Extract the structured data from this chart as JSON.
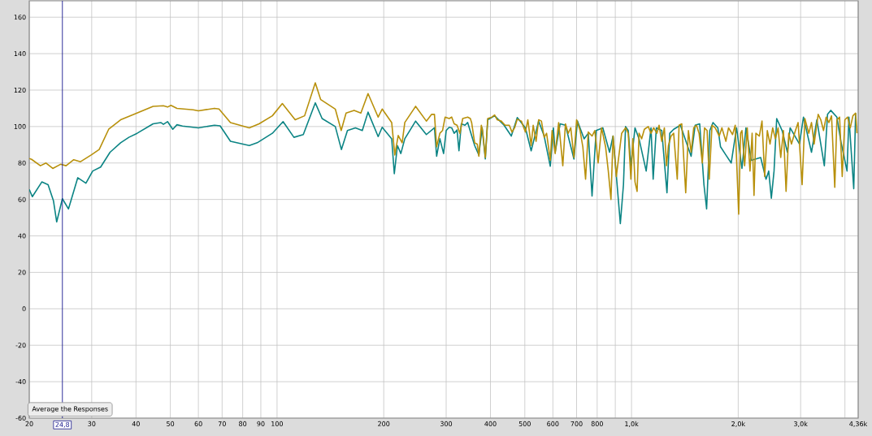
{
  "chart_data": {
    "type": "line",
    "log": "x",
    "grid": true,
    "xlim": [
      20,
      4360
    ],
    "ylim": [
      -60,
      169
    ],
    "xticks": [
      20,
      30,
      40,
      50,
      60,
      70,
      80,
      90,
      100,
      200,
      300,
      400,
      500,
      600,
      700,
      800,
      {
        "value": 900,
        "label": null
      },
      {
        "value": 1000,
        "label": "1,0k"
      },
      {
        "value": 2000,
        "label": "2,0k"
      },
      {
        "value": 3000,
        "label": "3,0k"
      },
      {
        "value": 4000,
        "label": null
      },
      {
        "value": 4360,
        "label": "4,36k"
      }
    ],
    "yticks": [
      -60,
      -40,
      -20,
      0,
      20,
      40,
      60,
      80,
      100,
      120,
      140,
      160
    ],
    "series": [
      {
        "color": "#0b8484",
        "x": [
          20,
          20.4,
          21.7,
          22.6,
          23.4,
          23.9,
          24.8,
          25.8,
          27.4,
          28.9,
          30.2,
          31.8,
          33.8,
          36.2,
          38.2,
          40.3,
          44.7,
          47,
          47.8,
          49.1,
          50.8,
          52.2,
          54.1,
          60,
          66.6,
          69.1,
          73.9,
          83.5,
          87.9,
          97,
          104,
          111.6,
          118.6,
          128.2,
          134,
          146,
          151.9,
          158,
          166.4,
          174,
          180.6,
          192.9,
          198,
          210.6,
          214.2,
          218.6,
          223.5,
          229.3,
          246,
          263.8,
          278,
          282,
          288,
          295,
          300,
          306,
          311,
          316,
          322,
          326,
          331,
          339,
          345,
          361,
          371,
          379,
          387,
          393,
          411,
          437,
          458,
          476,
          502,
          521,
          547,
          567,
          590,
          602,
          609,
          629,
          651,
          688,
          704,
          735,
          755,
          774,
          795,
          830,
          867,
          887,
          930,
          949,
          962,
          979,
          996,
          1023,
          1050,
          1100,
          1135,
          1151,
          1175,
          1217,
          1259,
          1282,
          1315,
          1374,
          1473,
          1512,
          1557,
          1601,
          1629,
          1663,
          1698,
          1752,
          1783,
          1846,
          1911,
          1979,
          2049,
          2103,
          2177,
          2314,
          2396,
          2438,
          2480,
          2524,
          2568,
          2660,
          2753,
          2802,
          2977,
          3056,
          3219,
          3333,
          3499,
          3573,
          3648,
          3797,
          3896,
          4055,
          4105,
          4236,
          4287
        ],
        "values": [
          65.5,
          61.5,
          69.6,
          68.1,
          59.3,
          47.7,
          60.4,
          54.8,
          71.9,
          68.9,
          75.6,
          77.8,
          85.9,
          91.1,
          94.1,
          96.3,
          101.5,
          102.2,
          101.2,
          102.7,
          98.5,
          101,
          100.3,
          99.3,
          100.7,
          100.4,
          91.9,
          89.6,
          91.1,
          96.3,
          102.7,
          94.1,
          95.6,
          113,
          104.4,
          100,
          87.4,
          97.8,
          99.3,
          97.8,
          107.9,
          94.5,
          99.6,
          93.3,
          74.1,
          89.6,
          85.2,
          93.3,
          103,
          95.6,
          99.3,
          83.7,
          93.3,
          85.2,
          97.8,
          99.6,
          99.3,
          96.3,
          98.1,
          86.7,
          101.5,
          100.7,
          102.2,
          89.6,
          84.4,
          99.3,
          82.2,
          103.7,
          105.9,
          100.7,
          94.8,
          104.9,
          99.3,
          86.7,
          103,
          94.8,
          78.2,
          99.3,
          85.9,
          101.5,
          100.7,
          82.2,
          103,
          93.3,
          96.3,
          61.9,
          97.8,
          99.3,
          85.9,
          94.8,
          46.7,
          68.1,
          100,
          97.8,
          78.5,
          99.3,
          93.3,
          75.6,
          99.3,
          71.1,
          99.3,
          97.8,
          63.7,
          96.3,
          98.5,
          100.7,
          83.7,
          100.7,
          101.5,
          68.1,
          54.8,
          97.8,
          102.2,
          99.3,
          88.9,
          84.4,
          80,
          99.3,
          77,
          99.3,
          81.5,
          83,
          71.1,
          75.6,
          60.7,
          75.6,
          104.4,
          97.8,
          85.9,
          99.3,
          90.4,
          105.2,
          85.9,
          103.7,
          78.5,
          106.7,
          108.9,
          105.2,
          91.9,
          75.6,
          105.2,
          65.9,
          107.4
        ]
      },
      {
        "color": "#b8900b",
        "x": [
          20,
          20.3,
          21.5,
          22.3,
          23.3,
          24.5,
          25.4,
          26.7,
          27.9,
          29.9,
          31.5,
          33.5,
          36.2,
          39.5,
          44.7,
          47.8,
          49.1,
          50.2,
          52.2,
          58,
          60,
          66.6,
          68.6,
          73.9,
          83.5,
          89,
          97,
          103.5,
          112.5,
          119.6,
          128.2,
          132.8,
          146,
          151.7,
          156.6,
          165,
          172.4,
          180.6,
          192.9,
          198,
          210.6,
          214.9,
          219.7,
          225.4,
          229.3,
          246,
          263.8,
          273,
          278,
          282,
          288,
          293,
          298,
          306,
          311,
          316,
          322,
          328,
          334,
          345,
          351,
          354,
          361,
          367,
          371,
          377,
          380,
          387,
          393,
          404,
          411,
          418,
          429,
          440,
          452,
          460,
          468,
          476,
          489,
          502,
          510,
          521,
          528,
          538,
          547,
          557,
          567,
          576,
          590,
          597,
          609,
          623,
          640,
          651,
          663,
          674,
          688,
          700,
          716,
          729,
          742,
          755,
          774,
          788,
          805,
          823,
          845,
          860,
          875,
          887,
          906,
          938,
          962,
          979,
          996,
          1009,
          1023,
          1037,
          1050,
          1068,
          1087,
          1115,
          1135,
          1155,
          1179,
          1196,
          1217,
          1238,
          1255,
          1271,
          1293,
          1315,
          1346,
          1362,
          1386,
          1422,
          1447,
          1473,
          1498,
          1525,
          1551,
          1584,
          1607,
          1634,
          1657,
          1687,
          1722,
          1768,
          1799,
          1846,
          1878,
          1928,
          1962,
          2006,
          2031,
          2049,
          2085,
          2121,
          2159,
          2189,
          2216,
          2243,
          2294,
          2334,
          2375,
          2416,
          2459,
          2502,
          2546,
          2591,
          2636,
          2683,
          2729,
          2777,
          2826,
          2900,
          2951,
          3029,
          3083,
          3164,
          3219,
          3275,
          3362,
          3420,
          3481,
          3541,
          3604,
          3667,
          3745,
          3797,
          3864,
          3931,
          3999,
          4069,
          4141,
          4213,
          4287,
          4325
        ],
        "values": [
          82.5,
          82,
          78.5,
          80,
          77,
          79.3,
          78.5,
          81.8,
          80.7,
          84.4,
          87.4,
          98.5,
          103.7,
          106.7,
          111.1,
          111.4,
          110.7,
          111.6,
          110,
          109.2,
          108.6,
          110,
          109.6,
          102.2,
          99.3,
          101.5,
          105.9,
          112.6,
          103.7,
          105.9,
          124,
          114.8,
          109.6,
          97.8,
          107.4,
          108.9,
          107.4,
          118.1,
          105.2,
          109.6,
          102.2,
          84.4,
          95.1,
          91.1,
          102.2,
          111.1,
          103,
          106.7,
          106.7,
          88.9,
          96.3,
          97.8,
          105.2,
          104.4,
          105.2,
          101.5,
          100.7,
          96.3,
          104.4,
          105.2,
          104.4,
          102.2,
          91.1,
          90.4,
          83.7,
          100.7,
          97.8,
          83,
          104.4,
          105.2,
          106.4,
          103.7,
          103,
          100.7,
          100.7,
          97,
          99.3,
          104,
          103,
          97,
          103.7,
          89.6,
          100.7,
          91.9,
          103.7,
          103,
          94.1,
          96.3,
          81.5,
          97.8,
          85.2,
          102.2,
          78.5,
          101.5,
          96.3,
          99.3,
          83,
          103.7,
          97.8,
          88.9,
          71.1,
          97,
          94.8,
          97.8,
          80,
          99.3,
          88.9,
          75.6,
          60,
          94.8,
          72.6,
          96.3,
          99.3,
          96.3,
          71.1,
          93.3,
          69.6,
          64.4,
          96.3,
          93.3,
          98.5,
          100,
          96.3,
          99.3,
          96.3,
          100.7,
          91.9,
          99.3,
          78.5,
          89.6,
          94.8,
          96.3,
          71.1,
          100.7,
          101.5,
          63.7,
          97.8,
          85.9,
          99.3,
          100.7,
          96.3,
          80,
          99.3,
          97.8,
          71.1,
          100.7,
          99.3,
          94.8,
          99.3,
          91.9,
          99.3,
          95.6,
          100.7,
          51.9,
          96.3,
          97.8,
          78.5,
          99.3,
          75.6,
          96.3,
          62.2,
          96.3,
          94.8,
          103,
          72.6,
          97.8,
          90.4,
          99.3,
          93.3,
          99.3,
          83,
          97.8,
          64.4,
          96.3,
          90.4,
          97.8,
          102.2,
          68.1,
          104.4,
          96.3,
          102.2,
          90.4,
          106.7,
          103.7,
          97.8,
          105.2,
          102.2,
          105.9,
          66.7,
          103.7,
          105.2,
          72.6,
          103.7,
          105.2,
          99.3,
          105.9,
          107.4,
          96.3
        ]
      }
    ],
    "ref_lines": [
      {
        "axis": "x",
        "value": 24.8,
        "label": "24,8",
        "color": "#1a1a8e"
      }
    ],
    "annotations": [
      "Average the Responses"
    ]
  }
}
